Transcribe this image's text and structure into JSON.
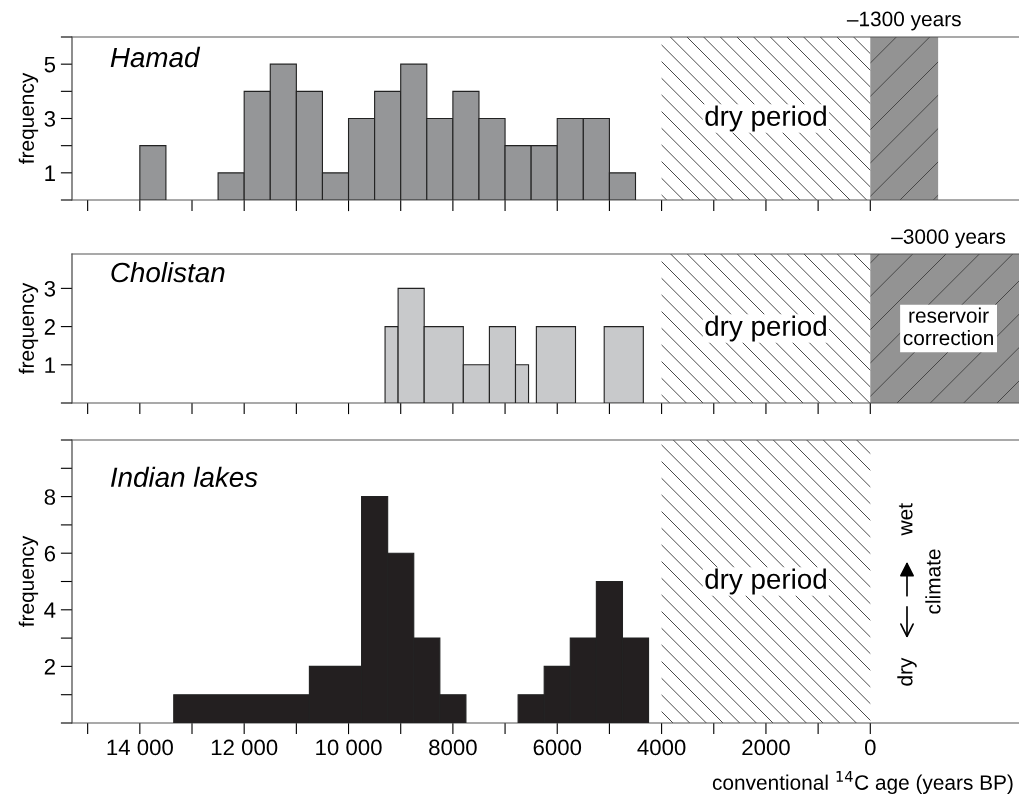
{
  "chart_data": [
    {
      "type": "histogram",
      "title": "Hamad",
      "ylabel": "frequency",
      "color": "#959698",
      "bins": [
        14000,
        13500,
        13000,
        12500,
        12000,
        11500,
        11000,
        10500,
        10000,
        9500,
        9000,
        8500,
        8000,
        7500,
        7000,
        6500,
        6000,
        5500,
        5000,
        4500
      ],
      "values": [
        2,
        0,
        0,
        1,
        4,
        5,
        4,
        1,
        3,
        4,
        5,
        3,
        4,
        3,
        2,
        2,
        3,
        3,
        1
      ],
      "xlim": [
        15300,
        -2850
      ],
      "xticks": [
        {
          "value": 15000,
          "label": null
        },
        {
          "value": 14000,
          "label": null
        },
        {
          "value": 13000,
          "label": null
        },
        {
          "value": 12000,
          "label": null
        },
        {
          "value": 11000,
          "label": null
        },
        {
          "value": 10000,
          "label": null
        },
        {
          "value": 9000,
          "label": null
        },
        {
          "value": 8000,
          "label": null
        },
        {
          "value": 7000,
          "label": null
        },
        {
          "value": 6000,
          "label": null
        },
        {
          "value": 5000,
          "label": null
        },
        {
          "value": 4000,
          "label": null
        },
        {
          "value": 3000,
          "label": null
        },
        {
          "value": 2000,
          "label": null
        },
        {
          "value": 1000,
          "label": null
        },
        {
          "value": 0,
          "label": null
        }
      ],
      "ylim": [
        0,
        6
      ],
      "yticks": [
        {
          "value": 0,
          "label": null
        },
        1,
        {
          "value": 2,
          "label": null
        },
        3,
        {
          "value": 4,
          "label": null
        },
        5,
        {
          "value": 6,
          "label": null
        }
      ],
      "bands": [
        {
          "axis": "x",
          "from": 4000,
          "to": 0,
          "label": "dry period",
          "color": "#ffffff"
        },
        {
          "axis": "x",
          "from": 0,
          "to": -1300,
          "label": "–1300 years",
          "color": "#939393"
        }
      ],
      "tick_labels": "y",
      "grid": false,
      "legend": false
    },
    {
      "type": "histogram",
      "title": "Cholistan",
      "ylabel": "frequency",
      "color": "#c8c9cb",
      "bins": [
        9300,
        9050,
        8550,
        7800,
        7300,
        6800,
        6550,
        6400,
        5650,
        5100,
        4350
      ],
      "values": [
        2,
        3,
        2,
        1,
        2,
        1,
        0,
        2,
        0,
        2
      ],
      "xlim": [
        15300,
        -2850
      ],
      "xticks": [
        {
          "value": 15000,
          "label": null
        },
        {
          "value": 14000,
          "label": null
        },
        {
          "value": 13000,
          "label": null
        },
        {
          "value": 12000,
          "label": null
        },
        {
          "value": 11000,
          "label": null
        },
        {
          "value": 10000,
          "label": null
        },
        {
          "value": 9000,
          "label": null
        },
        {
          "value": 8000,
          "label": null
        },
        {
          "value": 7000,
          "label": null
        },
        {
          "value": 6000,
          "label": null
        },
        {
          "value": 5000,
          "label": null
        },
        {
          "value": 4000,
          "label": null
        },
        {
          "value": 3000,
          "label": null
        },
        {
          "value": 2000,
          "label": null
        },
        {
          "value": 1000,
          "label": null
        },
        {
          "value": 0,
          "label": null
        }
      ],
      "ylim": [
        0,
        3.9
      ],
      "yticks": [
        {
          "value": 0,
          "label": null
        },
        1,
        2,
        3
      ],
      "bands": [
        {
          "axis": "x",
          "from": 4000,
          "to": 0,
          "label": "dry period",
          "color": "#ffffff"
        },
        {
          "axis": "x",
          "from": 0,
          "to": -3000,
          "label": "–3000 years",
          "color": "#939393"
        }
      ],
      "annotations": [
        "reservoir correction"
      ],
      "tick_labels": "y",
      "grid": false,
      "legend": false
    },
    {
      "type": "histogram",
      "title": "Indian lakes",
      "ylabel": "frequency",
      "xlabel": "conventional $^{14}$C age (years BP)",
      "color": "#231f20",
      "bins": [
        13350,
        10750,
        9750,
        9250,
        8750,
        8250,
        7750,
        6750,
        6250,
        5750,
        5250,
        4750,
        4250
      ],
      "values": [
        1,
        2,
        8,
        6,
        3,
        1,
        0,
        1,
        2,
        3,
        5,
        3
      ],
      "xlim": [
        15300,
        -2850
      ],
      "xticks": [
        {
          "value": 15000,
          "label": null
        },
        {
          "value": 14000,
          "label": "14 000"
        },
        {
          "value": 13000,
          "label": null
        },
        {
          "value": 12000,
          "label": "12 000"
        },
        {
          "value": 11000,
          "label": null
        },
        {
          "value": 10000,
          "label": "10 000"
        },
        {
          "value": 9000,
          "label": null
        },
        8000,
        {
          "value": 7000,
          "label": null
        },
        6000,
        {
          "value": 5000,
          "label": null
        },
        4000,
        {
          "value": 3000,
          "label": null
        },
        2000,
        {
          "value": 1000,
          "label": null
        },
        0
      ],
      "ylim": [
        0,
        10
      ],
      "yticks": [
        {
          "value": 0,
          "label": null
        },
        {
          "value": 1,
          "label": null
        },
        2,
        {
          "value": 3,
          "label": null
        },
        4,
        {
          "value": 5,
          "label": null
        },
        6,
        {
          "value": 7,
          "label": null
        },
        8,
        {
          "value": 9,
          "label": null
        },
        {
          "value": 10,
          "label": null
        }
      ],
      "bands": [
        {
          "axis": "x",
          "from": 4000,
          "to": 0,
          "label": "dry period",
          "color": "#ffffff"
        }
      ],
      "annotations": [
        "wet",
        "climate",
        "dry"
      ],
      "grid": false,
      "legend": false
    }
  ]
}
